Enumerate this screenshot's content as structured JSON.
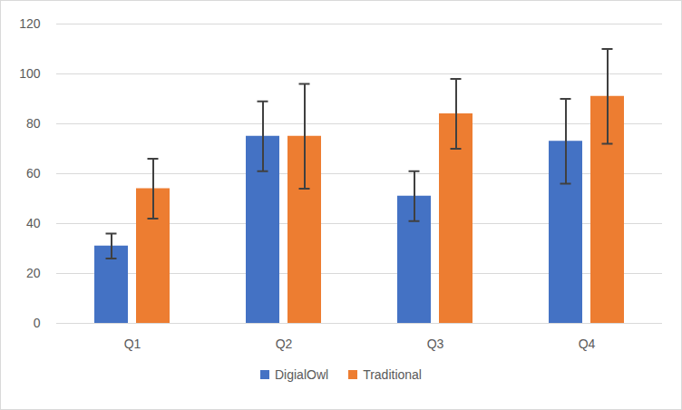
{
  "chart_data": {
    "type": "bar",
    "categories": [
      "Q1",
      "Q2",
      "Q3",
      "Q4"
    ],
    "series": [
      {
        "name": "DigialOwl",
        "color": "#4472c4",
        "values": [
          31,
          75,
          51,
          73
        ],
        "errors": [
          5,
          14,
          10,
          17
        ]
      },
      {
        "name": "Traditional",
        "color": "#ed7d31",
        "values": [
          54,
          75,
          84,
          91
        ],
        "errors": [
          12,
          21,
          14,
          19
        ]
      }
    ],
    "ylim": [
      0,
      120
    ],
    "yticks": [
      0,
      20,
      40,
      60,
      80,
      100,
      120
    ],
    "grid": true,
    "legend": "bottom"
  }
}
